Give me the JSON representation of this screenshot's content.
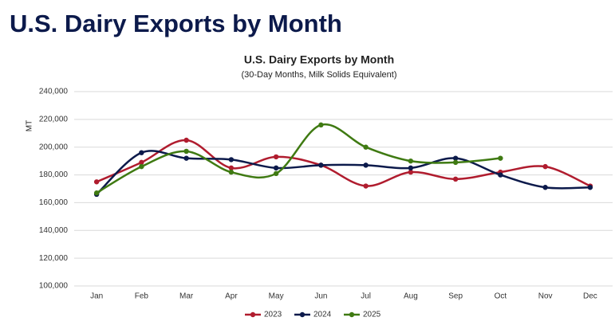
{
  "header": {
    "title": "U.S. Dairy Exports by Month"
  },
  "chart_data": {
    "type": "line",
    "title": "U.S. Dairy Exports by Month",
    "subtitle": "(30-Day Months, Milk Solids Equivalent)",
    "y_label": "MT",
    "categories": [
      "Jan",
      "Feb",
      "Mar",
      "Apr",
      "May",
      "Jun",
      "Jul",
      "Aug",
      "Sep",
      "Oct",
      "Nov",
      "Dec"
    ],
    "series": [
      {
        "name": "2023",
        "color": "#b01c2e",
        "values": [
          175000,
          189000,
          205000,
          185000,
          193000,
          187000,
          172000,
          182000,
          177000,
          182000,
          186000,
          172000
        ]
      },
      {
        "name": "2024",
        "color": "#0c1a4b",
        "values": [
          166000,
          196000,
          192000,
          191000,
          185000,
          187000,
          187000,
          185000,
          192000,
          180000,
          171000,
          171000
        ]
      },
      {
        "name": "2025",
        "color": "#3f7a12",
        "values": [
          167000,
          186000,
          197000,
          182000,
          181000,
          216000,
          200000,
          190000,
          189000,
          192000,
          null,
          null
        ]
      }
    ],
    "ylim": [
      100000,
      240000
    ],
    "yticks": [
      {
        "value": 100000,
        "label": "100,000"
      },
      {
        "value": 120000,
        "label": "120,000"
      },
      {
        "value": 140000,
        "label": "140,000"
      },
      {
        "value": 160000,
        "label": "160,000"
      },
      {
        "value": 180000,
        "label": "180,000"
      },
      {
        "value": 200000,
        "label": "200,000"
      },
      {
        "value": 220000,
        "label": "220,000"
      },
      {
        "value": 240000,
        "label": "240,000"
      }
    ],
    "grid": true,
    "legend": "bottom"
  }
}
